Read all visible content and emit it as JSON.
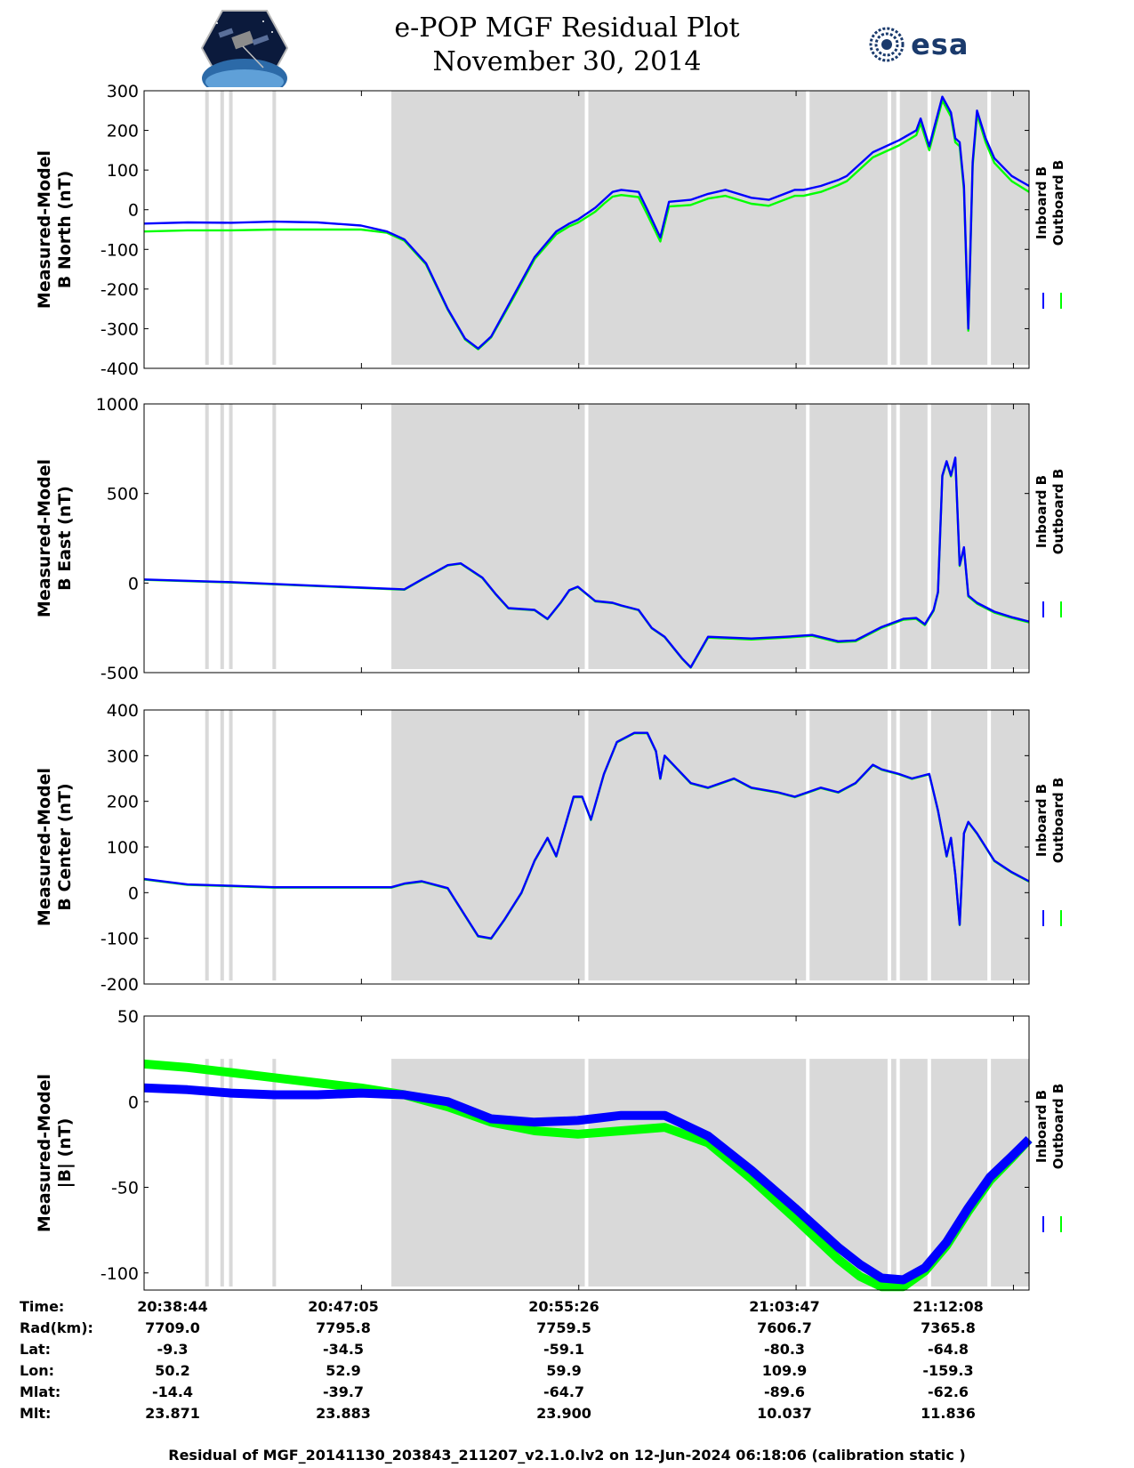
{
  "header": {
    "title": "e-POP MGF Residual Plot",
    "date": "November 30, 2014",
    "logo_left": "e-POP / CASSIOPE mission logo",
    "logo_right": "esa"
  },
  "chart_data": [
    {
      "type": "line",
      "panel": "b-north",
      "ylabel": [
        "Measured-Model",
        "B North (nT)"
      ],
      "ylim": [
        -400,
        300
      ],
      "yticks": [
        300,
        200,
        100,
        0,
        -100,
        -200,
        -300,
        -400
      ],
      "xlim_seconds": [
        0,
        2040
      ],
      "legend": [
        "Inboard B",
        "Outboard B"
      ],
      "legend_position": "right",
      "series": [
        {
          "name": "Inboard B",
          "color": "#0000ff",
          "x": [
            0,
            100,
            200,
            300,
            400,
            500,
            560,
            600,
            650,
            700,
            740,
            770,
            800,
            850,
            900,
            950,
            980,
            1000,
            1040,
            1060,
            1080,
            1100,
            1140,
            1160,
            1190,
            1210,
            1260,
            1300,
            1340,
            1400,
            1440,
            1500,
            1520,
            1560,
            1600,
            1620,
            1680,
            1740,
            1780,
            1790,
            1810,
            1840,
            1860,
            1870,
            1880,
            1890,
            1900,
            1910,
            1920,
            1940,
            1960,
            2000,
            2040
          ],
          "y": [
            -35,
            -32,
            -33,
            -30,
            -32,
            -40,
            -55,
            -75,
            -135,
            -250,
            -325,
            -350,
            -320,
            -220,
            -120,
            -55,
            -35,
            -25,
            5,
            25,
            45,
            50,
            45,
            0,
            -70,
            20,
            25,
            40,
            50,
            30,
            25,
            50,
            50,
            60,
            75,
            85,
            145,
            175,
            200,
            230,
            160,
            285,
            245,
            180,
            170,
            60,
            -300,
            120,
            250,
            180,
            130,
            85,
            60
          ]
        },
        {
          "name": "Outboard B",
          "color": "#00ff00",
          "x": [
            0,
            100,
            200,
            300,
            400,
            500,
            560,
            600,
            650,
            700,
            740,
            770,
            800,
            850,
            900,
            950,
            980,
            1000,
            1040,
            1060,
            1080,
            1100,
            1140,
            1160,
            1190,
            1210,
            1260,
            1300,
            1340,
            1400,
            1440,
            1500,
            1520,
            1560,
            1600,
            1620,
            1680,
            1740,
            1780,
            1790,
            1810,
            1840,
            1860,
            1870,
            1880,
            1890,
            1900,
            1910,
            1920,
            1940,
            1960,
            2000,
            2040
          ],
          "y": [
            -55,
            -52,
            -52,
            -50,
            -50,
            -50,
            -58,
            -78,
            -138,
            -252,
            -327,
            -352,
            -322,
            -225,
            -125,
            -62,
            -42,
            -33,
            -5,
            15,
            33,
            37,
            32,
            -12,
            -80,
            8,
            12,
            28,
            35,
            15,
            10,
            35,
            35,
            45,
            62,
            72,
            132,
            162,
            188,
            218,
            150,
            275,
            235,
            170,
            160,
            50,
            -305,
            110,
            240,
            170,
            118,
            72,
            45
          ]
        }
      ]
    },
    {
      "type": "line",
      "panel": "b-east",
      "ylabel": [
        "Measured-Model",
        "B East (nT)"
      ],
      "ylim": [
        -500,
        1000
      ],
      "yticks": [
        1000,
        500,
        0,
        -500
      ],
      "xlim_seconds": [
        0,
        2040
      ],
      "legend": [
        "Inboard B",
        "Outboard B"
      ],
      "legend_position": "right",
      "series": [
        {
          "name": "Inboard B",
          "color": "#0000ff",
          "x": [
            0,
            200,
            400,
            600,
            640,
            670,
            700,
            730,
            780,
            810,
            840,
            900,
            930,
            960,
            980,
            1000,
            1040,
            1080,
            1100,
            1140,
            1170,
            1200,
            1240,
            1260,
            1300,
            1400,
            1480,
            1540,
            1600,
            1640,
            1700,
            1750,
            1780,
            1800,
            1820,
            1830,
            1840,
            1850,
            1860,
            1870,
            1880,
            1890,
            1900,
            1920,
            1960,
            2000,
            2040
          ],
          "y": [
            20,
            5,
            -15,
            -35,
            20,
            60,
            100,
            110,
            30,
            -60,
            -140,
            -150,
            -200,
            -110,
            -40,
            -20,
            -100,
            -110,
            -125,
            -150,
            -250,
            -300,
            -420,
            -470,
            -300,
            -310,
            -300,
            -290,
            -325,
            -320,
            -245,
            -200,
            -195,
            -230,
            -150,
            -50,
            600,
            680,
            600,
            700,
            100,
            200,
            -70,
            -110,
            -160,
            -190,
            -215
          ]
        },
        {
          "name": "Outboard B",
          "color": "#00ff00",
          "x": [
            0,
            200,
            400,
            600,
            640,
            670,
            700,
            730,
            780,
            810,
            840,
            900,
            930,
            960,
            980,
            1000,
            1040,
            1080,
            1100,
            1140,
            1170,
            1200,
            1240,
            1260,
            1300,
            1400,
            1480,
            1540,
            1600,
            1640,
            1700,
            1750,
            1780,
            1800,
            1820,
            1830,
            1840,
            1850,
            1860,
            1870,
            1880,
            1890,
            1900,
            1920,
            1960,
            2000,
            2040
          ],
          "y": [
            18,
            3,
            -17,
            -37,
            18,
            58,
            98,
            108,
            28,
            -62,
            -142,
            -152,
            -202,
            -112,
            -42,
            -22,
            -102,
            -112,
            -127,
            -152,
            -252,
            -302,
            -422,
            -472,
            -305,
            -315,
            -305,
            -295,
            -330,
            -325,
            -250,
            -205,
            -200,
            -235,
            -155,
            -55,
            595,
            675,
            595,
            695,
            95,
            195,
            -75,
            -115,
            -165,
            -195,
            -220
          ]
        }
      ]
    },
    {
      "type": "line",
      "panel": "b-center",
      "ylabel": [
        "Measured-Model",
        "B Center (nT)"
      ],
      "ylim": [
        -200,
        400
      ],
      "yticks": [
        400,
        300,
        200,
        100,
        0,
        -100,
        -200
      ],
      "xlim_seconds": [
        0,
        2040
      ],
      "legend": [
        "Inboard B",
        "Outboard B"
      ],
      "legend_position": "right",
      "series": [
        {
          "name": "Inboard B",
          "color": "#0000ff",
          "x": [
            0,
            100,
            200,
            300,
            400,
            500,
            570,
            600,
            640,
            700,
            740,
            770,
            800,
            830,
            870,
            900,
            930,
            950,
            990,
            1010,
            1030,
            1060,
            1090,
            1130,
            1160,
            1180,
            1190,
            1200,
            1260,
            1300,
            1360,
            1400,
            1460,
            1500,
            1560,
            1600,
            1640,
            1680,
            1700,
            1740,
            1770,
            1810,
            1830,
            1840,
            1850,
            1860,
            1870,
            1880,
            1890,
            1900,
            1920,
            1960,
            2000,
            2040
          ],
          "y": [
            30,
            18,
            15,
            12,
            12,
            12,
            12,
            20,
            25,
            10,
            -50,
            -95,
            -100,
            -60,
            0,
            70,
            120,
            80,
            210,
            210,
            160,
            260,
            330,
            350,
            350,
            310,
            250,
            300,
            240,
            230,
            250,
            230,
            220,
            210,
            230,
            220,
            240,
            280,
            270,
            260,
            250,
            260,
            180,
            130,
            80,
            120,
            40,
            -70,
            130,
            155,
            130,
            70,
            45,
            25
          ]
        },
        {
          "name": "Outboard B",
          "color": "#00ff00",
          "x": [
            0,
            100,
            200,
            300,
            400,
            500,
            570,
            600,
            640,
            700,
            740,
            770,
            800,
            830,
            870,
            900,
            930,
            950,
            990,
            1010,
            1030,
            1060,
            1090,
            1130,
            1160,
            1180,
            1190,
            1200,
            1260,
            1300,
            1360,
            1400,
            1460,
            1500,
            1560,
            1600,
            1640,
            1680,
            1700,
            1740,
            1770,
            1810,
            1830,
            1840,
            1850,
            1860,
            1870,
            1880,
            1890,
            1900,
            1920,
            1960,
            2000,
            2040
          ],
          "y": [
            29,
            17,
            14,
            11,
            11,
            11,
            11,
            19,
            24,
            9,
            -51,
            -96,
            -101,
            -61,
            -1,
            69,
            119,
            79,
            209,
            209,
            159,
            259,
            329,
            349,
            349,
            309,
            249,
            299,
            239,
            229,
            249,
            229,
            219,
            209,
            229,
            219,
            239,
            279,
            269,
            259,
            249,
            259,
            179,
            129,
            79,
            119,
            39,
            -71,
            129,
            154,
            129,
            69,
            44,
            24
          ]
        }
      ]
    },
    {
      "type": "line",
      "panel": "b-total",
      "ylabel": [
        "Measured-Model",
        "|B| (nT)"
      ],
      "ylim": [
        -110,
        50
      ],
      "yticks": [
        50,
        0,
        -50,
        -100
      ],
      "xlim_seconds": [
        0,
        2040
      ],
      "legend": [
        "Inboard B",
        "Outboard B"
      ],
      "legend_position": "right",
      "series": [
        {
          "name": "Inboard B",
          "color": "#0000ff",
          "x": [
            0,
            100,
            200,
            300,
            400,
            500,
            600,
            700,
            800,
            900,
            1000,
            1100,
            1200,
            1300,
            1400,
            1500,
            1600,
            1650,
            1700,
            1750,
            1800,
            1850,
            1900,
            1950,
            2000,
            2040
          ],
          "y": [
            8,
            7,
            5,
            4,
            4,
            5,
            4,
            0,
            -10,
            -12,
            -11,
            -8,
            -8,
            -20,
            -40,
            -62,
            -85,
            -95,
            -103,
            -104,
            -97,
            -82,
            -62,
            -44,
            -32,
            -22
          ]
        },
        {
          "name": "Outboard B",
          "color": "#00ff00",
          "x": [
            0,
            100,
            200,
            300,
            400,
            500,
            600,
            700,
            800,
            900,
            1000,
            1100,
            1200,
            1300,
            1400,
            1500,
            1600,
            1650,
            1700,
            1750,
            1800,
            1850,
            1900,
            1950,
            2000,
            2040
          ],
          "y": [
            22,
            20,
            17,
            14,
            11,
            8,
            4,
            -3,
            -12,
            -17,
            -19,
            -17,
            -15,
            -24,
            -45,
            -68,
            -92,
            -102,
            -108,
            -108,
            -99,
            -84,
            -64,
            -46,
            -33,
            -22
          ]
        }
      ]
    }
  ],
  "shading": {
    "gray_region_seconds": [
      570,
      2040
    ],
    "white_lines_in_gray": [
      1020,
      1530,
      1718,
      1738,
      1810,
      1948
    ],
    "gray_lines_in_white": [
      145,
      180,
      200,
      300
    ]
  },
  "x_axis": {
    "ticks_seconds": [
      0,
      501,
      1002,
      1503,
      2004
    ],
    "rows": [
      {
        "label": "Time:",
        "values": [
          "20:38:44",
          "20:47:05",
          "20:55:26",
          "21:03:47",
          "21:12:08"
        ]
      },
      {
        "label": "Rad(km):",
        "values": [
          "7709.0",
          "7795.8",
          "7759.5",
          "7606.7",
          "7365.8"
        ]
      },
      {
        "label": "Lat:",
        "values": [
          "-9.3",
          "-34.5",
          "-59.1",
          "-80.3",
          "-64.8"
        ]
      },
      {
        "label": "Lon:",
        "values": [
          "50.2",
          "52.9",
          "59.9",
          "109.9",
          "-159.3"
        ]
      },
      {
        "label": "Mlat:",
        "values": [
          "-14.4",
          "-39.7",
          "-64.7",
          "-89.6",
          "-62.6"
        ]
      },
      {
        "label": "Mlt:",
        "values": [
          "23.871",
          "23.883",
          "23.900",
          "10.037",
          "11.836"
        ]
      }
    ]
  },
  "footer": "Residual of MGF_20141130_203843_211207_v2.1.0.lv2 on 12-Jun-2024 06:18:06 (calibration static )",
  "colors": {
    "inboard": "#0000ff",
    "outboard": "#00ff00",
    "shade": "#d9d9d9"
  }
}
